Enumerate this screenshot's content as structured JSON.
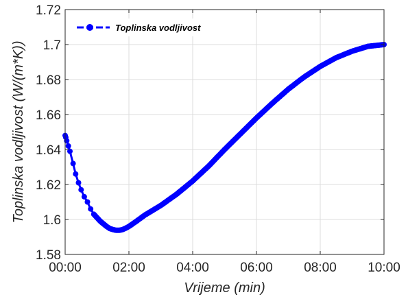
{
  "chart_data": {
    "type": "line",
    "xlabel": "Vrijeme (min)",
    "ylabel": "Toplinska vodljivost (W/(m*K))",
    "x_ticks": [
      "00:00",
      "02:00",
      "04:00",
      "06:00",
      "08:00",
      "10:00"
    ],
    "x_tick_values": [
      0,
      2,
      4,
      6,
      8,
      10
    ],
    "y_ticks": [
      "1.58",
      "1.6",
      "1.62",
      "1.64",
      "1.66",
      "1.68",
      "1.7",
      "1.72"
    ],
    "y_tick_values": [
      1.58,
      1.6,
      1.62,
      1.64,
      1.66,
      1.68,
      1.7,
      1.72
    ],
    "xlim": [
      0,
      10
    ],
    "ylim": [
      1.58,
      1.72
    ],
    "grid": true,
    "legend_position": "top-left",
    "series": [
      {
        "name": "Toplinska vodljivost",
        "color": "#0000ff",
        "marker": "circle",
        "line_style": "dashed",
        "x": [
          0,
          0.02,
          0.05,
          0.1,
          0.15,
          0.25,
          0.33,
          0.42,
          0.5,
          0.6,
          0.7,
          0.8,
          0.9,
          1.0,
          1.1,
          1.2,
          1.3,
          1.4,
          1.5,
          1.6,
          1.7,
          1.8,
          1.9,
          2.0,
          2.2,
          2.5,
          3.0,
          3.5,
          4.0,
          4.5,
          5.0,
          5.5,
          6.0,
          6.5,
          7.0,
          7.5,
          8.0,
          8.5,
          9.0,
          9.5,
          10.0
        ],
        "y": [
          1.648,
          1.647,
          1.645,
          1.642,
          1.639,
          1.632,
          1.626,
          1.621,
          1.617,
          1.613,
          1.61,
          1.606,
          1.603,
          1.601,
          1.599,
          1.5975,
          1.596,
          1.5948,
          1.5942,
          1.5938,
          1.5938,
          1.5942,
          1.595,
          1.596,
          1.5985,
          1.6025,
          1.608,
          1.6145,
          1.622,
          1.6305,
          1.64,
          1.649,
          1.658,
          1.6665,
          1.6745,
          1.6815,
          1.6875,
          1.6925,
          1.6962,
          1.699,
          1.7
        ]
      }
    ]
  }
}
